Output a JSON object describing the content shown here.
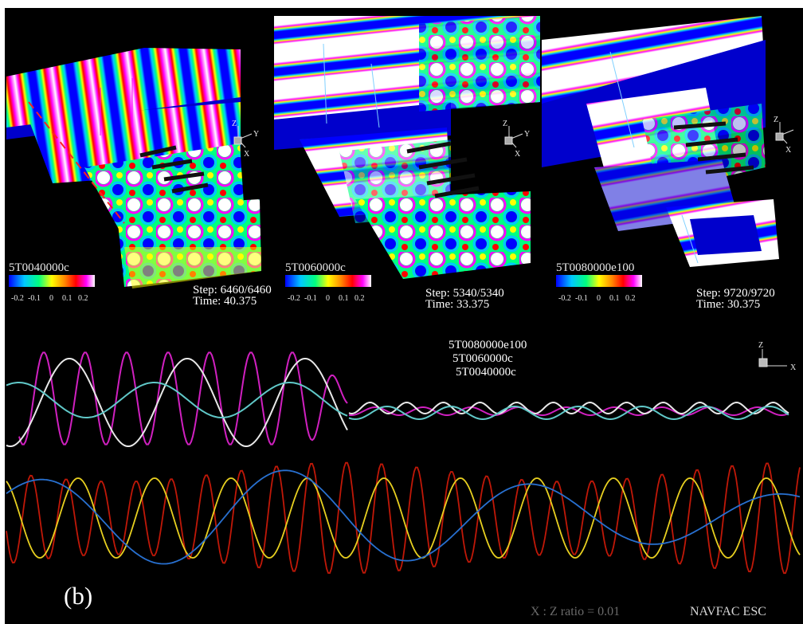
{
  "panels": [
    {
      "case_label": "5T0040000c",
      "step_text": "Step: 6460/6460",
      "time_text": "Time: 40.375"
    },
    {
      "case_label": "5T0060000c",
      "step_text": "Step: 5340/5340",
      "time_text": "Time: 33.375"
    },
    {
      "case_label": "5T0080000e100",
      "step_text": "Step: 9720/9720",
      "time_text": "Time: 30.375"
    }
  ],
  "colorbar": {
    "ticks": [
      "-0.2",
      "-0.1",
      "0",
      "0.1",
      "0.2"
    ],
    "colors": [
      "#0000ff",
      "#00c8ff",
      "#00ff80",
      "#ffff00",
      "#ff8800",
      "#ff0000",
      "#ff00ff",
      "#ffffff"
    ]
  },
  "axes_labels": {
    "z": "Z",
    "y": "Y",
    "x": "X"
  },
  "legend": [
    "5T0080000e100",
    "5T0060000c",
    "5T0040000c"
  ],
  "panel_label": "(b)",
  "ratio_text": "X : Z ratio = 0.01",
  "credit": "NAVFAC ESC",
  "line_colors": {
    "upper_magenta": "#d020c0",
    "upper_white": "#e8e8e8",
    "upper_cyan": "#60c8c8",
    "lower_red": "#c01808",
    "lower_yellow": "#e8d020",
    "lower_blue": "#2870d0"
  }
}
